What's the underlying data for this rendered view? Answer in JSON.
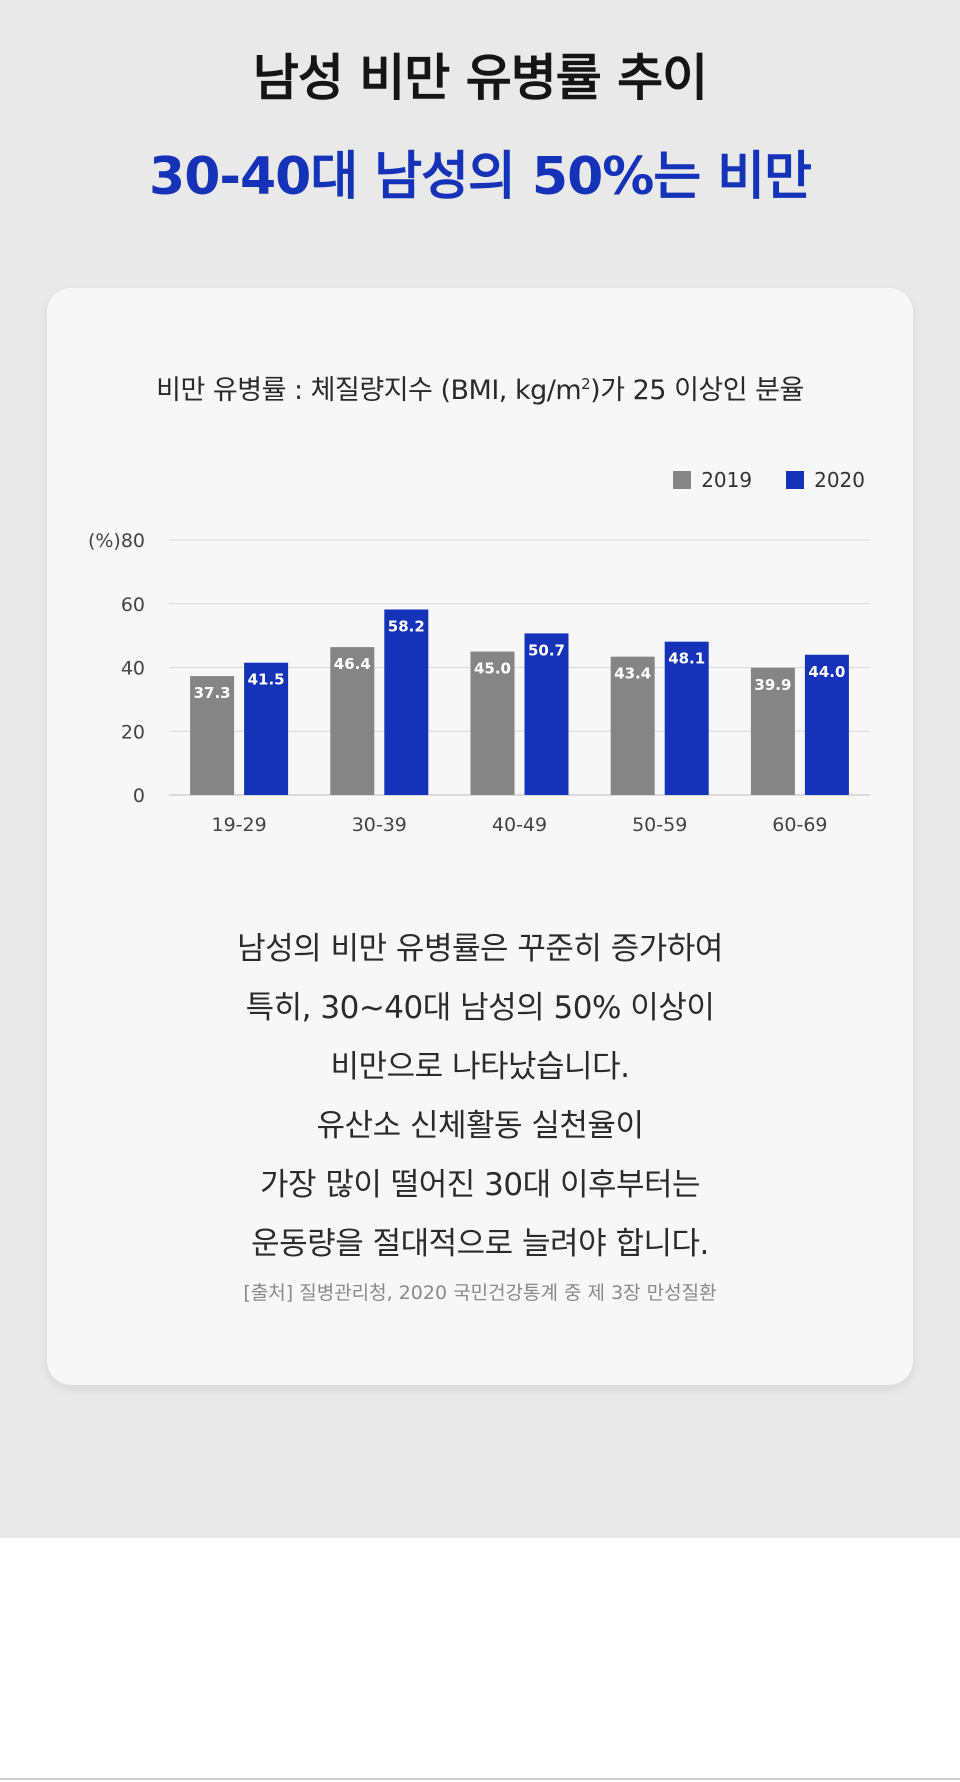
{
  "header": {
    "title": "남성 비만 유병률 추이",
    "subtitle": "30-40대 남성의 50%는 비만"
  },
  "colors": {
    "series_2019": "#858585",
    "series_2020": "#1433b8",
    "accent": "#1433b8"
  },
  "chart_data": {
    "type": "bar",
    "title_pre": "비만 유병률 : 체질량지수 (BMI, kg/m",
    "title_sup": "2",
    "title_post": ")가 25 이상인 분율",
    "ylabel": "(%)",
    "ylim": [
      0,
      80
    ],
    "yticks": [
      0,
      20,
      40,
      60,
      80
    ],
    "ytick_labels": [
      "0",
      "20",
      "40",
      "60",
      "(%)80"
    ],
    "grid": true,
    "legend_position": "top-right",
    "categories": [
      "19-29",
      "30-39",
      "40-49",
      "50-59",
      "60-69"
    ],
    "series": [
      {
        "name": "2019",
        "values": [
          37.3,
          46.4,
          45.0,
          43.4,
          39.9
        ],
        "labels": [
          "37.3",
          "46.4",
          "45.0",
          "43.4",
          "39.9"
        ]
      },
      {
        "name": "2020",
        "values": [
          41.5,
          58.2,
          50.7,
          48.1,
          44.0
        ],
        "labels": [
          "41.5",
          "58.2",
          "50.7",
          "48.1",
          "44.0"
        ]
      }
    ]
  },
  "body": {
    "lines": [
      "남성의 비만 유병률은 꾸준히 증가하여",
      "특히, 30~40대 남성의 50% 이상이",
      "비만으로 나타났습니다.",
      "유산소 신체활동 실천율이",
      "가장 많이 떨어진 30대 이후부터는",
      "운동량을 절대적으로 늘려야 합니다."
    ]
  },
  "source": "[출처] 질병관리청, 2020 국민건강통계 중 제 3장 만성질환"
}
